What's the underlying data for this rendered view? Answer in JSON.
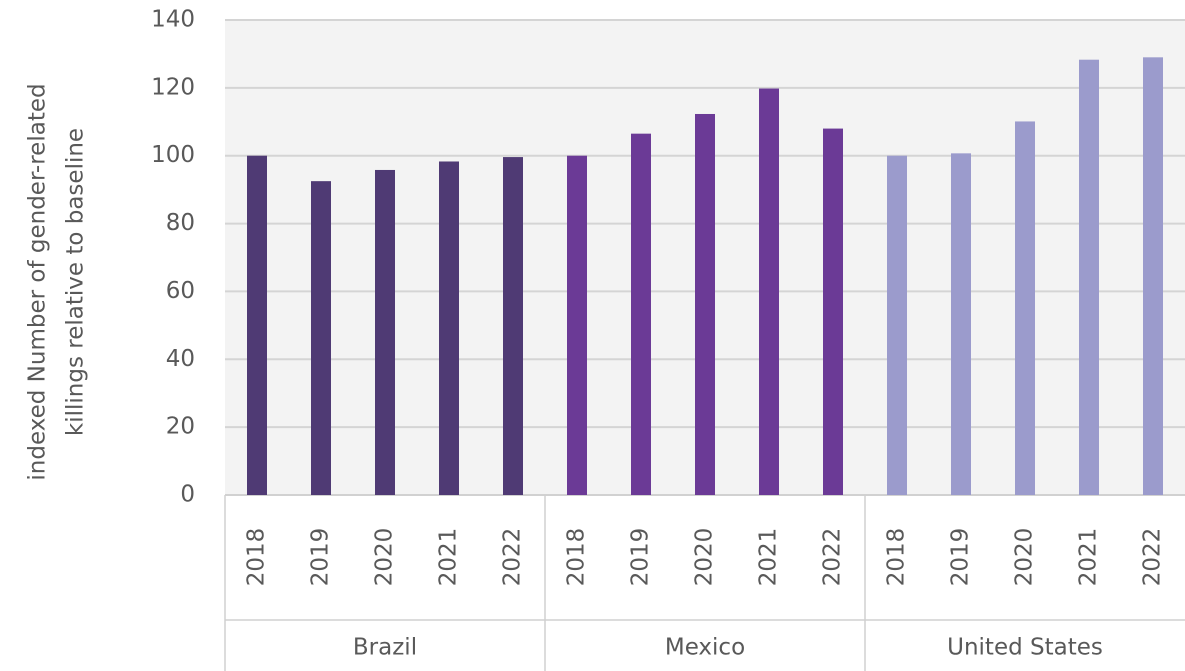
{
  "chart_data": {
    "type": "bar",
    "ylabel": [
      "indexed Number of gender-related",
      "killings relative to baseline"
    ],
    "categories": [
      "2018",
      "2019",
      "2020",
      "2021",
      "2022"
    ],
    "series": [
      {
        "name": "Brazil",
        "color": "#4f3a74",
        "values": [
          100,
          92.5,
          95.8,
          98.3,
          99.6
        ]
      },
      {
        "name": "Mexico",
        "color": "#6b3a96",
        "values": [
          100,
          106.5,
          112.3,
          119.8,
          108
        ]
      },
      {
        "name": "United States",
        "color": "#9b9bcc",
        "values": [
          100,
          100.7,
          110.1,
          128.3,
          129
        ]
      }
    ],
    "ylim": [
      0,
      140
    ],
    "yticks": [
      0,
      20,
      40,
      60,
      80,
      100,
      120,
      140
    ],
    "grid": true
  }
}
